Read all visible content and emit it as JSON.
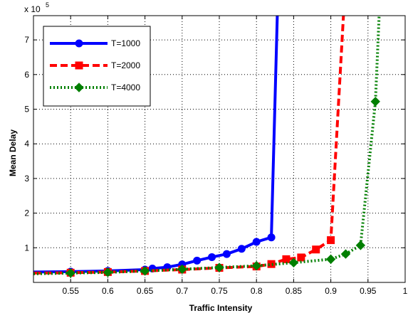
{
  "chart_data": {
    "type": "line",
    "title": "",
    "xlabel": "Traffic Intensity",
    "ylabel": "Mean Delay",
    "y_multiplier_base": "x 10",
    "y_multiplier_exp": "5",
    "xlim": [
      0.5,
      1.0
    ],
    "ylim": [
      0,
      7.7
    ],
    "grid": true,
    "legend_position": "top-left",
    "x_ticks": [
      0.55,
      0.6,
      0.65,
      0.7,
      0.75,
      0.8,
      0.85,
      0.9,
      0.95,
      1
    ],
    "x_tick_labels": [
      "0.55",
      "0.6",
      "0.65",
      "0.7",
      "0.75",
      "0.8",
      "0.85",
      "0.9",
      "0.95",
      "1"
    ],
    "y_ticks": [
      1,
      2,
      3,
      4,
      5,
      6,
      7
    ],
    "y_tick_labels": [
      "1",
      "2",
      "3",
      "4",
      "5",
      "6",
      "7"
    ],
    "series": [
      {
        "name": "T=1000",
        "color": "#0000ff",
        "line_style": "solid",
        "marker": "circle",
        "x": [
          0.5,
          0.55,
          0.6,
          0.65,
          0.66,
          0.68,
          0.7,
          0.72,
          0.74,
          0.76,
          0.78,
          0.8,
          0.82,
          0.828
        ],
        "y": [
          0.3,
          0.31,
          0.33,
          0.37,
          0.4,
          0.44,
          0.52,
          0.63,
          0.73,
          0.82,
          0.97,
          1.17,
          1.3,
          7.7
        ],
        "marker_x": [
          0.55,
          0.6,
          0.65,
          0.66,
          0.68,
          0.7,
          0.72,
          0.74,
          0.76,
          0.78,
          0.8,
          0.82
        ]
      },
      {
        "name": "T=2000",
        "color": "#ff0000",
        "line_style": "dashed",
        "marker": "square",
        "x": [
          0.5,
          0.55,
          0.6,
          0.65,
          0.7,
          0.75,
          0.8,
          0.82,
          0.84,
          0.86,
          0.88,
          0.9,
          0.917
        ],
        "y": [
          0.27,
          0.28,
          0.3,
          0.33,
          0.37,
          0.42,
          0.46,
          0.53,
          0.67,
          0.72,
          0.95,
          1.22,
          7.7
        ],
        "marker_x": [
          0.55,
          0.6,
          0.65,
          0.7,
          0.75,
          0.8,
          0.82,
          0.84,
          0.86,
          0.88,
          0.9
        ]
      },
      {
        "name": "T=4000",
        "color": "#007f00",
        "line_style": "dotted",
        "marker": "diamond",
        "x": [
          0.5,
          0.55,
          0.6,
          0.65,
          0.7,
          0.75,
          0.8,
          0.85,
          0.9,
          0.92,
          0.94,
          0.96,
          0.965
        ],
        "y": [
          0.25,
          0.27,
          0.29,
          0.33,
          0.38,
          0.43,
          0.48,
          0.57,
          0.67,
          0.82,
          1.07,
          5.22,
          7.7
        ],
        "marker_x": [
          0.55,
          0.6,
          0.65,
          0.7,
          0.75,
          0.8,
          0.85,
          0.9,
          0.92,
          0.94,
          0.96
        ]
      }
    ]
  }
}
